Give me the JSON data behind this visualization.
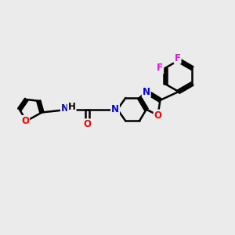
{
  "bg_color": "#ebebeb",
  "bond_color": "#000000",
  "bond_width": 1.8,
  "atom_colors": {
    "N": "#0000ff",
    "O": "#ff0000",
    "F": "#ff00ff",
    "H": "#000000",
    "C": "#000000"
  },
  "font_size": 8.5,
  "fig_size": [
    3.0,
    3.0
  ],
  "dpi": 100
}
